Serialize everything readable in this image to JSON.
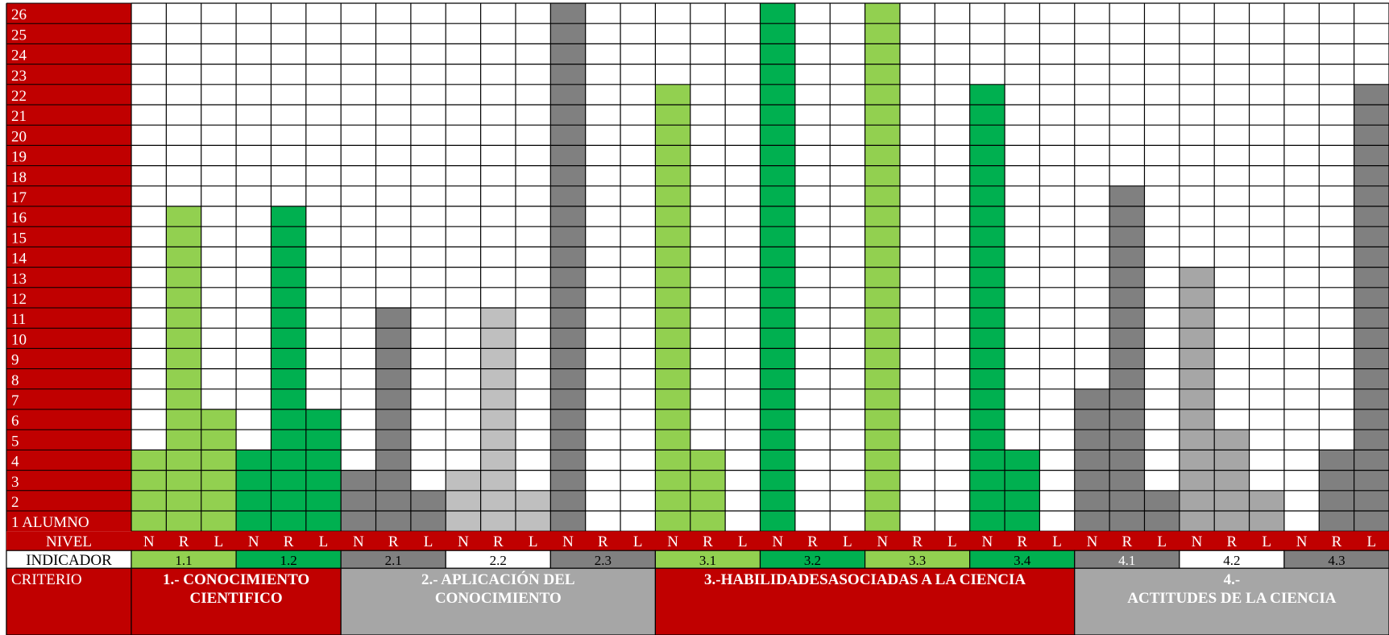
{
  "chart_data": {
    "type": "bar",
    "row_labels": [
      "1 ALUMNO",
      "2",
      "3",
      "4",
      "5",
      "6",
      "7",
      "8",
      "9",
      "10",
      "11",
      "12",
      "13",
      "14",
      "15",
      "16",
      "17",
      "18",
      "19",
      "20",
      "21",
      "22",
      "23",
      "24",
      "25",
      "26"
    ],
    "row_header": {
      "nivel": "NIVEL",
      "indicador": "INDICADOR",
      "criterio": "CRITERIO"
    },
    "columns": [
      {
        "nivel": "N",
        "value": 4,
        "color": "#92D050"
      },
      {
        "nivel": "R",
        "value": 16,
        "color": "#92D050"
      },
      {
        "nivel": "L",
        "value": 6,
        "color": "#92D050"
      },
      {
        "nivel": "N",
        "value": 4,
        "color": "#00B050"
      },
      {
        "nivel": "R",
        "value": 16,
        "color": "#00B050"
      },
      {
        "nivel": "L",
        "value": 6,
        "color": "#00B050"
      },
      {
        "nivel": "N",
        "value": 3,
        "color": "#808080"
      },
      {
        "nivel": "R",
        "value": 11,
        "color": "#808080"
      },
      {
        "nivel": "L",
        "value": 2,
        "color": "#808080"
      },
      {
        "nivel": "N",
        "value": 3,
        "color": "#BFBFBF"
      },
      {
        "nivel": "R",
        "value": 11,
        "color": "#BFBFBF"
      },
      {
        "nivel": "L",
        "value": 2,
        "color": "#BFBFBF"
      },
      {
        "nivel": "N",
        "value": 26,
        "color": "#808080"
      },
      {
        "nivel": "R",
        "value": 0,
        "color": "#808080"
      },
      {
        "nivel": "L",
        "value": 0,
        "color": "#808080"
      },
      {
        "nivel": "N",
        "value": 22,
        "color": "#92D050"
      },
      {
        "nivel": "R",
        "value": 4,
        "color": "#92D050"
      },
      {
        "nivel": "L",
        "value": 0,
        "color": "#92D050"
      },
      {
        "nivel": "N",
        "value": 26,
        "color": "#00B050"
      },
      {
        "nivel": "R",
        "value": 0,
        "color": "#00B050"
      },
      {
        "nivel": "L",
        "value": 0,
        "color": "#00B050"
      },
      {
        "nivel": "N",
        "value": 26,
        "color": "#92D050"
      },
      {
        "nivel": "R",
        "value": 0,
        "color": "#92D050"
      },
      {
        "nivel": "L",
        "value": 0,
        "color": "#92D050"
      },
      {
        "nivel": "N",
        "value": 22,
        "color": "#00B050"
      },
      {
        "nivel": "R",
        "value": 4,
        "color": "#00B050"
      },
      {
        "nivel": "L",
        "value": 0,
        "color": "#00B050"
      },
      {
        "nivel": "N",
        "value": 7,
        "color": "#808080"
      },
      {
        "nivel": "R",
        "value": 17,
        "color": "#808080"
      },
      {
        "nivel": "L",
        "value": 2,
        "color": "#808080"
      },
      {
        "nivel": "N",
        "value": 13,
        "color": "#A6A6A6"
      },
      {
        "nivel": "R",
        "value": 5,
        "color": "#A6A6A6"
      },
      {
        "nivel": "L",
        "value": 2,
        "color": "#A6A6A6"
      },
      {
        "nivel": "N",
        "value": 0,
        "color": "#808080"
      },
      {
        "nivel": "R",
        "value": 4,
        "color": "#808080"
      },
      {
        "nivel": "L",
        "value": 22,
        "color": "#808080"
      }
    ],
    "indicadores": [
      {
        "label": "1.1",
        "bg": "#92D050",
        "fg": "#000000"
      },
      {
        "label": "1.2",
        "bg": "#00B050",
        "fg": "#000000"
      },
      {
        "label": "2.1",
        "bg": "#808080",
        "fg": "#000000"
      },
      {
        "label": "2.2",
        "bg": "#FFFFFF",
        "fg": "#000000"
      },
      {
        "label": "2.3",
        "bg": "#808080",
        "fg": "#000000"
      },
      {
        "label": "3.1",
        "bg": "#92D050",
        "fg": "#000000"
      },
      {
        "label": "3.2",
        "bg": "#00B050",
        "fg": "#000000"
      },
      {
        "label": "3.3",
        "bg": "#92D050",
        "fg": "#000000"
      },
      {
        "label": "3.4",
        "bg": "#00B050",
        "fg": "#000000"
      },
      {
        "label": "4.1",
        "bg": "#808080",
        "fg": "#FFFFFF"
      },
      {
        "label": "4.2",
        "bg": "#FFFFFF",
        "fg": "#000000"
      },
      {
        "label": "4.3",
        "bg": "#808080",
        "fg": "#000000"
      }
    ],
    "criterios": [
      {
        "lines": [
          "1.- CONOCIMIENTO",
          "CIENTIFICO"
        ],
        "span": 2,
        "bg": "#C00000"
      },
      {
        "lines": [
          "2.-  APLICACIÓN DEL",
          "CONOCIMIENTO"
        ],
        "span": 3,
        "bg": "#A6A6A6"
      },
      {
        "lines": [
          "3.-HABILIDADESASOCIADAS A LA CIENCIA"
        ],
        "span": 4,
        "bg": "#C00000"
      },
      {
        "lines": [
          "4.-",
          "ACTITUDES DE LA CIENCIA"
        ],
        "span": 3,
        "bg": "#A6A6A6"
      }
    ],
    "colors": {
      "header_red": "#C00000",
      "grid_line": "#000000",
      "empty_cell": "#FFFFFF"
    }
  }
}
